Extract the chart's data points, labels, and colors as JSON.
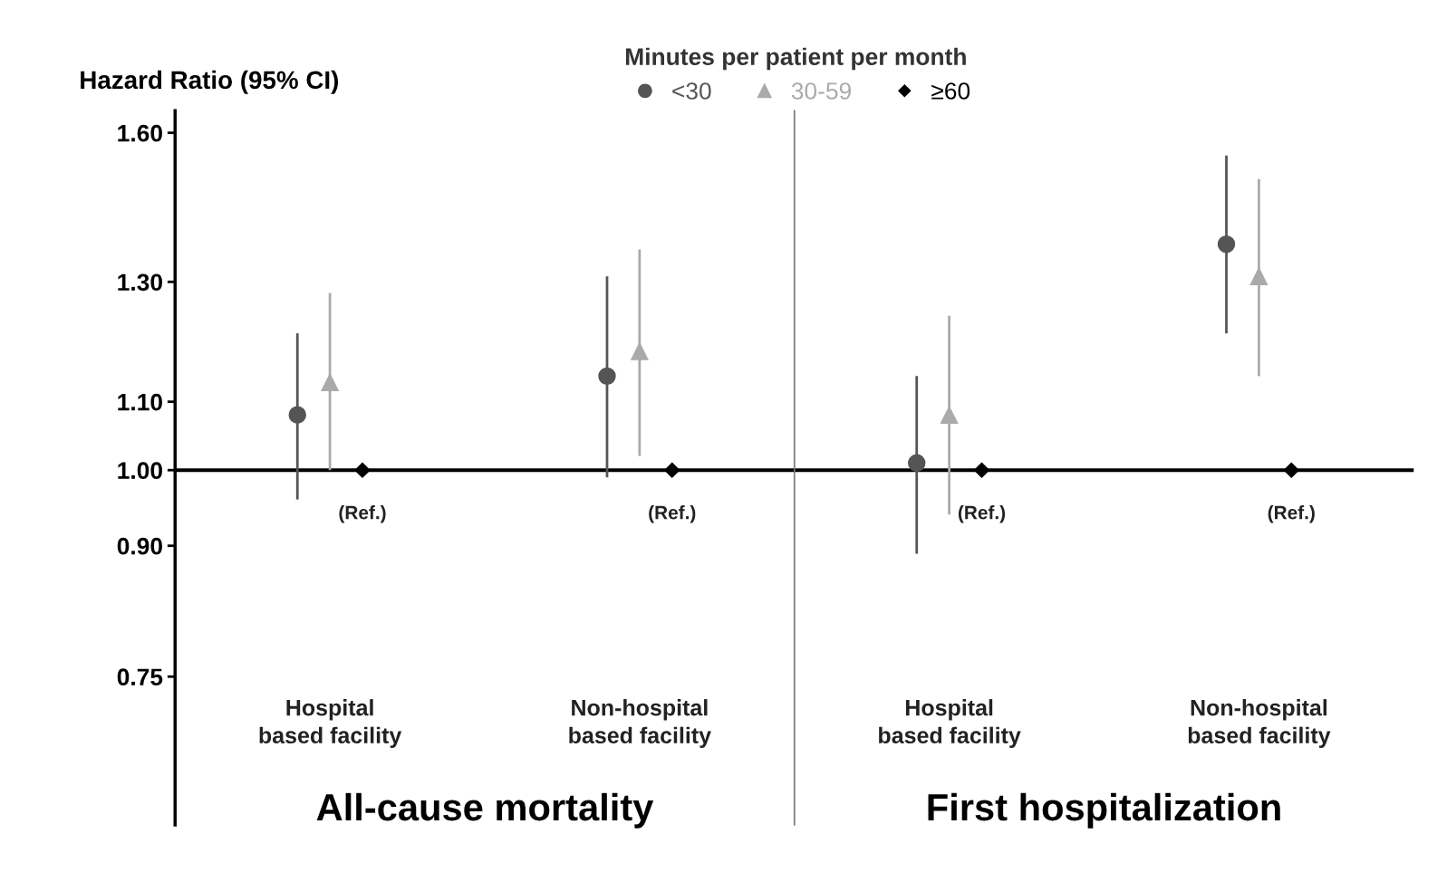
{
  "chart_data": [
    {
      "type": "scatter",
      "xlabel": "All-cause mortality",
      "ylabel": "Hazard Ratio (95% CI)",
      "legend_title": "Minutes per patient per month",
      "legend": "top",
      "categories": [
        "Hospital\nbased facility",
        "Non-hospital\nbased facility"
      ],
      "log": true,
      "ylim": [
        0.61,
        1.65
      ],
      "yticks": [
        {
          "value": 0.75,
          "label": "0.75"
        },
        {
          "value": 0.9,
          "label": "0.90"
        },
        {
          "value": 1.0,
          "label": "1.00"
        },
        {
          "value": 1.1,
          "label": "1.10"
        },
        {
          "value": 1.3,
          "label": "1.30"
        },
        {
          "value": 1.6,
          "label": "1.60"
        }
      ],
      "series": [
        {
          "name": "<30",
          "color": "#555555",
          "marker": "circle",
          "values": [
            1.08,
            1.14
          ],
          "errors": [
            [
              0.96,
              1.21
            ],
            [
              0.99,
              1.31
            ]
          ]
        },
        {
          "name": "30-59",
          "color": "#aaaaaa",
          "marker": "triangle",
          "values": [
            1.13,
            1.18
          ],
          "errors": [
            [
              1.0,
              1.28
            ],
            [
              1.02,
              1.36
            ]
          ]
        },
        {
          "name": "≥60",
          "color": "#000000",
          "marker": "diamond",
          "values": [
            1.0,
            1.0
          ]
        }
      ],
      "ref_lines": [
        {
          "axis": "y",
          "value": 1.0,
          "color": "#000000"
        }
      ],
      "annotations": [
        {
          "text": "(Ref.)",
          "x": "Hospital\nbased facility",
          "y": 1.0
        },
        {
          "text": "(Ref.)",
          "x": "Non-hospital\nbased facility",
          "y": 1.0
        }
      ]
    },
    {
      "type": "scatter",
      "xlabel": "First hospitalization",
      "tick_labels": "x",
      "categories": [
        "Hospital\nbased facility",
        "Non-hospital\nbased facility"
      ],
      "log": true,
      "ylim": [
        0.61,
        1.65
      ],
      "series": [
        {
          "color": "#555555",
          "marker": "circle",
          "values": [
            1.01,
            1.37
          ],
          "errors": [
            [
              0.89,
              1.14
            ],
            [
              1.21,
              1.55
            ]
          ]
        },
        {
          "color": "#aaaaaa",
          "marker": "triangle",
          "values": [
            1.08,
            1.31
          ],
          "errors": [
            [
              0.94,
              1.24
            ],
            [
              1.14,
              1.5
            ]
          ]
        },
        {
          "color": "#000000",
          "marker": "diamond",
          "values": [
            1.0,
            1.0
          ]
        }
      ],
      "ref_lines": [
        {
          "axis": "y",
          "value": 1.0,
          "color": "#000000"
        }
      ],
      "annotations": [
        {
          "text": "(Ref.)",
          "x": "Hospital\nbased facility",
          "y": 1.0
        },
        {
          "text": "(Ref.)",
          "x": "Non-hospital\nbased facility",
          "y": 1.0
        }
      ]
    }
  ]
}
